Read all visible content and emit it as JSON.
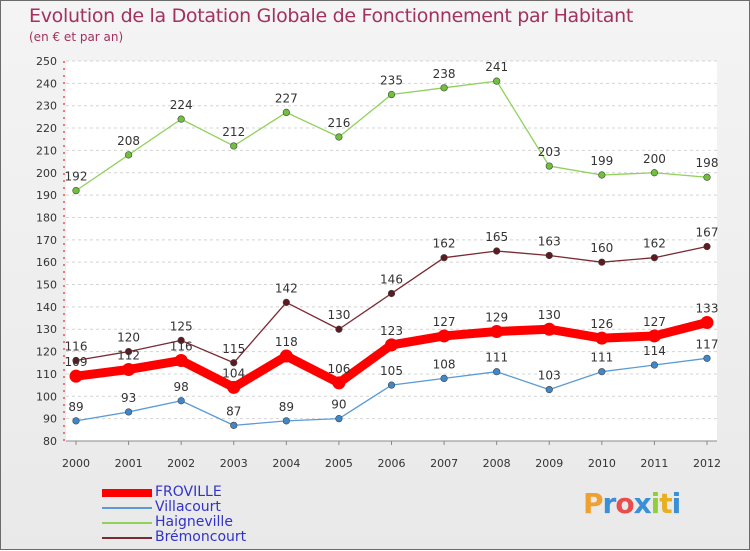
{
  "title": "Evolution de la Dotation Globale de Fonctionnement par Habitant",
  "subtitle": "(en € et par an)",
  "logo_text": "Proxiti",
  "chart_data": {
    "type": "line",
    "title": "Evolution de la Dotation Globale de Fonctionnement par Habitant",
    "subtitle": "(en € et par an)",
    "xlabel": "",
    "ylabel": "",
    "x": [
      "2000",
      "2001",
      "2002",
      "2003",
      "2004",
      "2005",
      "2006",
      "2007",
      "2008",
      "2009",
      "2010",
      "2011",
      "2012"
    ],
    "ylim": [
      80,
      250
    ],
    "y_ticks": [
      80,
      90,
      100,
      110,
      120,
      130,
      140,
      150,
      160,
      170,
      180,
      190,
      200,
      210,
      220,
      230,
      240,
      250
    ],
    "grid": "horizontal",
    "legend_placement": "bottom-left",
    "series": [
      {
        "name": "Haigneville",
        "color": "#8fd15a",
        "marker": "#6fc03a",
        "values": [
          192,
          208,
          224,
          212,
          227,
          216,
          235,
          238,
          241,
          203,
          199,
          200,
          198
        ]
      },
      {
        "name": "Brémoncourt",
        "color": "#7a2a32",
        "marker": "#5e1a1f",
        "values": [
          116,
          120,
          125,
          115,
          142,
          130,
          146,
          162,
          165,
          163,
          160,
          162,
          167
        ]
      },
      {
        "name": "Villacourt",
        "color": "#5b9bd5",
        "marker": "#3f87c9",
        "values": [
          89,
          93,
          98,
          87,
          89,
          90,
          105,
          108,
          111,
          103,
          111,
          114,
          117
        ]
      },
      {
        "name": "FROVILLE",
        "color": "#ff0000",
        "marker": "#ff0000",
        "values": [
          109,
          112,
          116,
          104,
          118,
          106,
          123,
          127,
          129,
          130,
          126,
          127,
          133
        ]
      }
    ],
    "legend_order": [
      "FROVILLE",
      "Villacourt",
      "Haigneville",
      "Brémoncourt"
    ]
  }
}
